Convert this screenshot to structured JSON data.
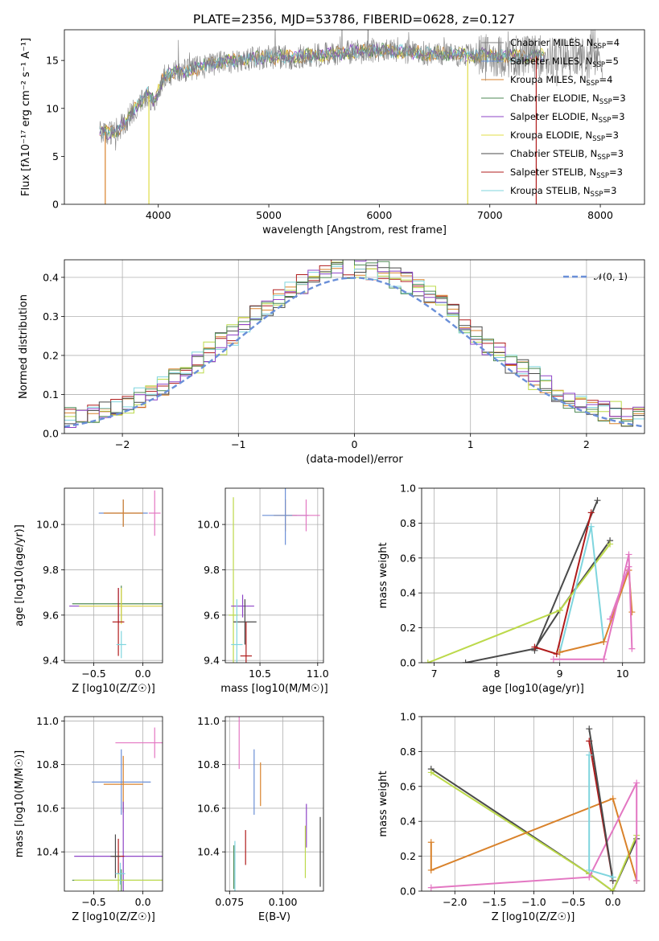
{
  "colors": {
    "chabrier_miles": "#808080",
    "salpeter_miles": "#6b8fd6",
    "kroupa_miles": "#d9822b",
    "chabrier_elodie": "#4f8a55",
    "salpeter_elodie": "#8e44c7",
    "kroupa_elodie": "#e0dc47",
    "chabrier_stelib": "#4a4a4a",
    "salpeter_stelib": "#b01c1c",
    "kroupa_stelib": "#7fd5de",
    "pink": "#e377c2",
    "lime": "#bcd94a",
    "normal": "#6a8fd8"
  },
  "chart_data": [
    {
      "id": "spectrum",
      "type": "line",
      "title": "PLATE=2356, MJD=53786, FIBERID=0628, z=0.127",
      "xlabel": "wavelength [Angstrom, rest frame]",
      "ylabel": "Flux [fλ10⁻¹⁷ erg cm⁻² s⁻¹ A⁻¹]",
      "xlim": [
        3150,
        8400
      ],
      "ylim": [
        0,
        18.2
      ],
      "xticks": [
        4000,
        5000,
        6000,
        7000,
        8000
      ],
      "yticks": [
        0,
        5,
        10,
        15
      ],
      "legend_position": "top-right",
      "legend": [
        {
          "label": "Chabrier MILES, N_SSP=4",
          "text": "Chabrier MILES, N",
          "sub": "SSP",
          "tail": "=4",
          "color_key": "chabrier_miles"
        },
        {
          "label": "Salpeter MILES, N_SSP=5",
          "text": "Salpeter MILES, N",
          "sub": "SSP",
          "tail": "=5",
          "color_key": "salpeter_miles"
        },
        {
          "label": "Kroupa MILES, N_SSP=4",
          "text": "Kroupa MILES, N",
          "sub": "SSP",
          "tail": "=4",
          "color_key": "kroupa_miles"
        },
        {
          "label": "Chabrier ELODIE, N_SSP=3",
          "text": "Chabrier ELODIE, N",
          "sub": "SSP",
          "tail": "=3",
          "color_key": "chabrier_elodie"
        },
        {
          "label": "Salpeter ELODIE, N_SSP=3",
          "text": "Salpeter ELODIE, N",
          "sub": "SSP",
          "tail": "=3",
          "color_key": "salpeter_elodie"
        },
        {
          "label": "Kroupa ELODIE, N_SSP=3",
          "text": "Kroupa ELODIE, N",
          "sub": "SSP",
          "tail": "=3",
          "color_key": "kroupa_elodie"
        },
        {
          "label": "Chabrier STELIB, N_SSP=3",
          "text": "Chabrier STELIB, N",
          "sub": "SSP",
          "tail": "=3",
          "color_key": "chabrier_stelib"
        },
        {
          "label": "Salpeter STELIB, N_SSP=3",
          "text": "Salpeter STELIB, N",
          "sub": "SSP",
          "tail": "=3",
          "color_key": "salpeter_stelib"
        },
        {
          "label": "Kroupa STELIB, N_SSP=3",
          "text": "Kroupa STELIB, N",
          "sub": "SSP",
          "tail": "=3",
          "color_key": "kroupa_stelib"
        }
      ],
      "continuum": [
        [
          3470,
          7.6
        ],
        [
          3600,
          7.5
        ],
        [
          3700,
          8.5
        ],
        [
          3800,
          10.2
        ],
        [
          3900,
          11.6
        ],
        [
          3960,
          10.6
        ],
        [
          4050,
          13.3
        ],
        [
          4150,
          13.8
        ],
        [
          4300,
          14.0
        ],
        [
          4500,
          14.7
        ],
        [
          4700,
          15.0
        ],
        [
          5000,
          15.4
        ],
        [
          5200,
          15.3
        ],
        [
          5500,
          15.6
        ],
        [
          5800,
          15.9
        ],
        [
          6000,
          16.0
        ],
        [
          6200,
          15.9
        ],
        [
          6500,
          15.7
        ],
        [
          6800,
          15.6
        ],
        [
          7000,
          15.5
        ],
        [
          7300,
          15.4
        ],
        [
          7500,
          15.5
        ]
      ],
      "model_end": 7500,
      "data_end": 8020,
      "dips": [
        {
          "x": 3520,
          "color_key": "kroupa_miles",
          "min": 0
        },
        {
          "x": 3915,
          "color_key": "kroupa_elodie",
          "min": 0
        },
        {
          "x": 6800,
          "color_key": "kroupa_elodie",
          "min": 0
        },
        {
          "x": 7420,
          "color_key": "salpeter_stelib",
          "min": 0
        }
      ]
    },
    {
      "id": "residuals",
      "type": "histogram",
      "xlabel": "(data-model)/error",
      "ylabel": "Normed distribution",
      "xlim": [
        -2.5,
        2.5
      ],
      "ylim": [
        0,
        0.445
      ],
      "xticks": [
        -2,
        -1,
        0,
        1,
        2
      ],
      "yticks": [
        0.0,
        0.1,
        0.2,
        0.3,
        0.4
      ],
      "legend": [
        {
          "label": "𝒩(0, 1)",
          "color_key": "normal",
          "style": "dashed"
        }
      ],
      "legend_position": "top-right",
      "bin_width": 0.1
    },
    {
      "id": "age-vs-Z",
      "type": "errorbar",
      "xlabel": "Z [log10(Z/Z☉)]",
      "ylabel": "age [log10(age/yr)]",
      "xlim": [
        -0.8,
        0.2
      ],
      "ylim": [
        9.39,
        10.16
      ],
      "xticks": [
        -0.5,
        0.0
      ],
      "yticks": [
        9.4,
        9.6,
        9.8,
        10.0
      ],
      "points": [
        {
          "x": -0.2,
          "y": 10.05,
          "xerr": 0.25,
          "yerr": 0.06,
          "color_key": "salpeter_miles"
        },
        {
          "x": -0.2,
          "y": 10.05,
          "xerr": 0.2,
          "yerr": 0.06,
          "color_key": "kroupa_miles"
        },
        {
          "x": 0.12,
          "y": 10.05,
          "xerr": 0.06,
          "yerr": 0.1,
          "color_key": "pink"
        },
        {
          "x": -0.22,
          "y": 9.65,
          "xerr": 0.5,
          "yerr": 0.08,
          "color_key": "chabrier_elodie"
        },
        {
          "x": -0.25,
          "y": 9.64,
          "xerr": 0.5,
          "yerr": 0.08,
          "color_key": "salpeter_elodie"
        },
        {
          "x": -0.22,
          "y": 9.64,
          "xerr": 0.43,
          "yerr": 0.08,
          "color_key": "kroupa_elodie"
        },
        {
          "x": -0.25,
          "y": 9.57,
          "xerr": 0.06,
          "yerr": 0.15,
          "color_key": "salpeter_stelib"
        },
        {
          "x": -0.22,
          "y": 9.47,
          "xerr": 0.05,
          "yerr": 0.06,
          "color_key": "kroupa_stelib"
        }
      ]
    },
    {
      "id": "age-vs-mass",
      "type": "errorbar",
      "xlabel": "mass [log10(M/M☉)]",
      "ylabel": "",
      "xlim": [
        10.2,
        11.05
      ],
      "ylim": [
        9.39,
        10.16
      ],
      "xticks": [
        10.5,
        11.0
      ],
      "yticks": [
        9.4,
        9.6,
        9.8,
        10.0
      ],
      "points": [
        {
          "x": 10.72,
          "y": 10.04,
          "xerr": 0.1,
          "yerr": 0.07,
          "color_key": "kroupa_miles"
        },
        {
          "x": 10.72,
          "y": 10.04,
          "xerr": 0.2,
          "yerr": 0.13,
          "color_key": "salpeter_miles"
        },
        {
          "x": 10.9,
          "y": 10.04,
          "xerr": 0.12,
          "yerr": 0.07,
          "color_key": "pink"
        },
        {
          "x": 10.27,
          "y": 9.6,
          "xerr": 0.04,
          "yerr": 0.52,
          "color_key": "lime"
        },
        {
          "x": 10.35,
          "y": 9.64,
          "xerr": 0.1,
          "yerr": 0.05,
          "color_key": "salpeter_elodie"
        },
        {
          "x": 10.37,
          "y": 9.57,
          "xerr": 0.1,
          "yerr": 0.1,
          "color_key": "chabrier_stelib"
        },
        {
          "x": 10.38,
          "y": 9.42,
          "xerr": 0.05,
          "yerr": 0.15,
          "color_key": "salpeter_stelib"
        },
        {
          "x": 10.3,
          "y": 9.47,
          "xerr": 0.05,
          "yerr": 0.2,
          "color_key": "kroupa_stelib"
        }
      ]
    },
    {
      "id": "weight-vs-age",
      "type": "line",
      "xlabel": "age [log10(age/yr)]",
      "ylabel": "mass weight",
      "xlim": [
        6.8,
        10.35
      ],
      "ylim": [
        0,
        1.0
      ],
      "xticks": [
        7,
        8,
        9,
        10
      ],
      "yticks": [
        0.0,
        0.2,
        0.4,
        0.6,
        0.8,
        1.0
      ],
      "series": [
        {
          "color_key": "chabrier_stelib",
          "points": [
            [
              7.5,
              0.0
            ],
            [
              8.6,
              0.08
            ],
            [
              9.0,
              0.3
            ],
            [
              9.8,
              0.7
            ]
          ]
        },
        {
          "color_key": "chabrier_stelib",
          "points": [
            [
              8.6,
              0.07
            ],
            [
              9.6,
              0.93
            ]
          ]
        },
        {
          "color_key": "salpeter_stelib",
          "points": [
            [
              8.6,
              0.09
            ],
            [
              8.95,
              0.05
            ],
            [
              9.5,
              0.86
            ]
          ]
        },
        {
          "color_key": "lime",
          "points": [
            [
              6.9,
              0.0
            ],
            [
              9.0,
              0.3
            ],
            [
              9.8,
              0.68
            ]
          ]
        },
        {
          "color_key": "kroupa_stelib",
          "points": [
            [
              9.0,
              0.06
            ],
            [
              9.5,
              0.78
            ],
            [
              9.7,
              0.12
            ]
          ]
        },
        {
          "color_key": "kroupa_miles",
          "points": [
            [
              9.0,
              0.06
            ],
            [
              9.7,
              0.12
            ],
            [
              10.1,
              0.53
            ],
            [
              10.15,
              0.29
            ]
          ]
        },
        {
          "color_key": "pink",
          "points": [
            [
              8.9,
              0.02
            ],
            [
              9.7,
              0.02
            ],
            [
              10.1,
              0.62
            ],
            [
              10.15,
              0.08
            ]
          ]
        },
        {
          "color_key": "pink",
          "points": [
            [
              9.8,
              0.25
            ],
            [
              10.1,
              0.55
            ]
          ]
        }
      ]
    },
    {
      "id": "mass-vs-Z",
      "type": "errorbar",
      "xlabel": "Z [log10(Z/Z☉)]",
      "ylabel": "mass [log10(M/M☉)]",
      "xlim": [
        -0.8,
        0.2
      ],
      "ylim": [
        10.22,
        11.02
      ],
      "xticks": [
        -0.5,
        0.0
      ],
      "yticks": [
        10.4,
        10.6,
        10.8,
        11.0
      ],
      "points": [
        {
          "x": 0.12,
          "y": 10.9,
          "xerr": 0.4,
          "yerr": 0.07,
          "color_key": "pink"
        },
        {
          "x": -0.22,
          "y": 10.72,
          "xerr": 0.3,
          "yerr": 0.15,
          "color_key": "salpeter_miles"
        },
        {
          "x": -0.2,
          "y": 10.71,
          "xerr": 0.2,
          "yerr": 0.13,
          "color_key": "kroupa_miles"
        },
        {
          "x": -0.2,
          "y": 10.38,
          "xerr": 0.5,
          "yerr": 0.25,
          "color_key": "salpeter_elodie"
        },
        {
          "x": -0.22,
          "y": 10.27,
          "xerr": 0.5,
          "yerr": 0.05,
          "color_key": "chabrier_elodie"
        },
        {
          "x": -0.25,
          "y": 10.27,
          "xerr": 0.45,
          "yerr": 0.05,
          "color_key": "lime"
        },
        {
          "x": -0.25,
          "y": 10.38,
          "xerr": 0.06,
          "yerr": 0.08,
          "color_key": "salpeter_stelib"
        },
        {
          "x": -0.28,
          "y": 10.38,
          "xerr": 0.05,
          "yerr": 0.1,
          "color_key": "chabrier_stelib"
        },
        {
          "x": -0.23,
          "y": 10.3,
          "xerr": 0.05,
          "yerr": 0.05,
          "color_key": "kroupa_stelib"
        }
      ]
    },
    {
      "id": "mass-vs-ebv",
      "type": "errorbar",
      "xlabel": "E(B-V)",
      "ylabel": "",
      "xlim": [
        0.073,
        0.119
      ],
      "ylim": [
        10.22,
        11.02
      ],
      "xticks": [
        0.075,
        0.1
      ],
      "yticks": [
        10.4,
        10.6,
        10.8,
        11.0
      ],
      "points": [
        {
          "x": 0.0795,
          "y": 10.9,
          "xerr": 0,
          "yerr": 0.12,
          "color_key": "pink"
        },
        {
          "x": 0.0865,
          "y": 10.72,
          "xerr": 0,
          "yerr": 0.15,
          "color_key": "salpeter_miles"
        },
        {
          "x": 0.0895,
          "y": 10.71,
          "xerr": 0,
          "yerr": 0.1,
          "color_key": "kroupa_miles"
        },
        {
          "x": 0.0825,
          "y": 10.42,
          "xerr": 0,
          "yerr": 0.08,
          "color_key": "salpeter_stelib"
        },
        {
          "x": 0.077,
          "y": 10.33,
          "xerr": 0,
          "yerr": 0.1,
          "color_key": "chabrier_elodie"
        },
        {
          "x": 0.0775,
          "y": 10.33,
          "xerr": 0,
          "yerr": 0.12,
          "color_key": "kroupa_stelib"
        },
        {
          "x": 0.111,
          "y": 10.52,
          "xerr": 0,
          "yerr": 0.1,
          "color_key": "salpeter_elodie"
        },
        {
          "x": 0.1105,
          "y": 10.4,
          "xerr": 0,
          "yerr": 0.12,
          "color_key": "lime"
        },
        {
          "x": 0.1175,
          "y": 10.4,
          "xerr": 0,
          "yerr": 0.16,
          "color_key": "chabrier_stelib"
        }
      ]
    },
    {
      "id": "weight-vs-Z",
      "type": "line",
      "xlabel": "Z [log10(Z/Z☉)]",
      "ylabel": "mass weight",
      "xlim": [
        -2.42,
        0.4
      ],
      "ylim": [
        0,
        1.0
      ],
      "xticks": [
        -2.0,
        -1.5,
        -1.0,
        -0.5,
        0.0
      ],
      "yticks": [
        0.0,
        0.2,
        0.4,
        0.6,
        0.8,
        1.0
      ],
      "series": [
        {
          "color_key": "chabrier_stelib",
          "points": [
            [
              -2.3,
              0.7
            ],
            [
              -0.3,
              0.1
            ],
            [
              0.0,
              0.0
            ],
            [
              0.3,
              0.3
            ]
          ]
        },
        {
          "color_key": "lime",
          "points": [
            [
              -2.3,
              0.68
            ],
            [
              -0.3,
              0.1
            ],
            [
              0.0,
              0.0
            ],
            [
              0.3,
              0.32
            ]
          ]
        },
        {
          "color_key": "kroupa_miles",
          "points": [
            [
              -2.3,
              0.28
            ],
            [
              -2.3,
              0.12
            ],
            [
              0.0,
              0.53
            ],
            [
              0.3,
              0.06
            ]
          ]
        },
        {
          "color_key": "pink",
          "points": [
            [
              -2.3,
              0.02
            ],
            [
              -0.3,
              0.08
            ],
            [
              0.3,
              0.62
            ],
            [
              0.3,
              0.06
            ]
          ]
        },
        {
          "color_key": "salpeter_stelib",
          "points": [
            [
              -0.3,
              0.86
            ],
            [
              0.0,
              0.06
            ]
          ]
        },
        {
          "color_key": "chabrier_stelib",
          "points": [
            [
              -0.3,
              0.93
            ],
            [
              0.0,
              0.06
            ]
          ]
        },
        {
          "color_key": "kroupa_stelib",
          "points": [
            [
              -0.3,
              0.78
            ],
            [
              -0.3,
              0.12
            ],
            [
              0.0,
              0.08
            ]
          ]
        }
      ]
    }
  ]
}
